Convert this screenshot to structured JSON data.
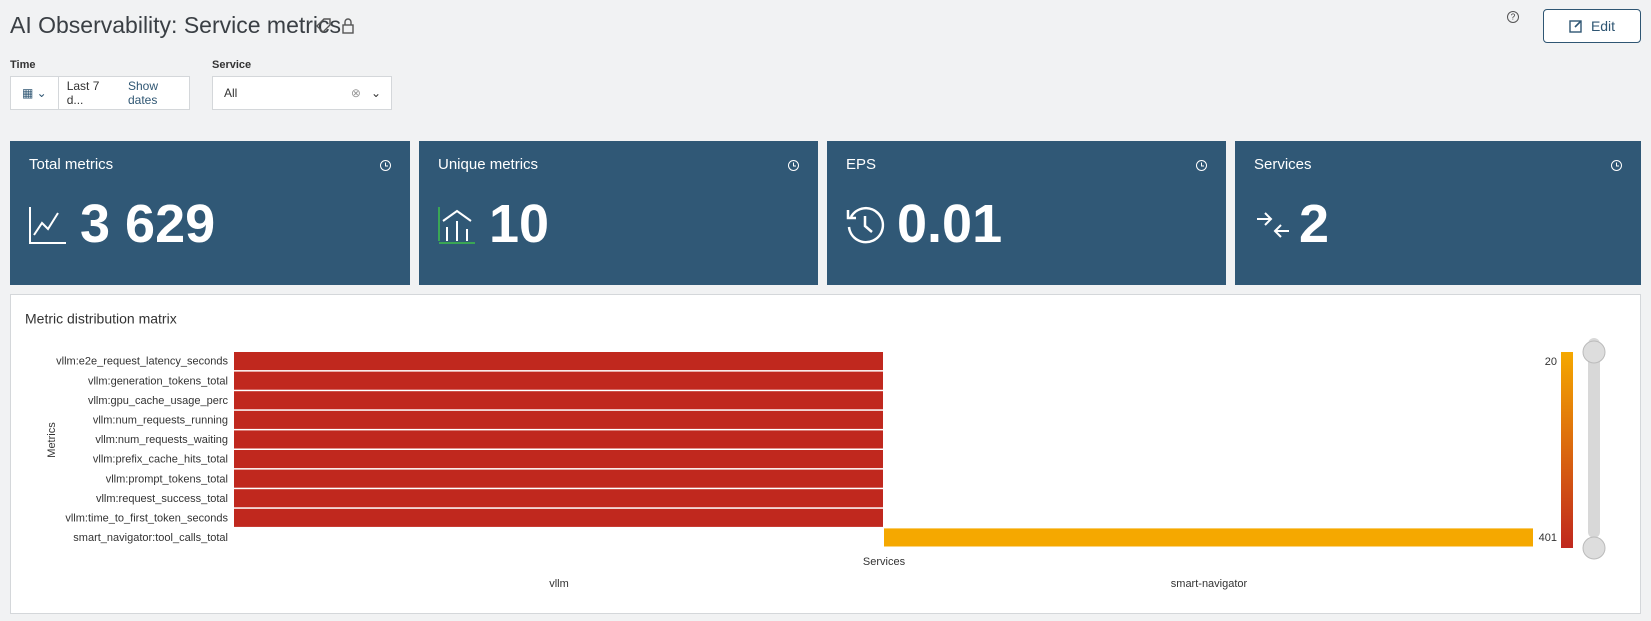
{
  "header": {
    "title": "AI Observability: Service metrics",
    "edit": "Edit"
  },
  "filters": {
    "time_label": "Time",
    "time_value": "Last 7 d...",
    "show_dates": "Show dates",
    "service_label": "Service",
    "service_value": "All"
  },
  "kpis": [
    {
      "title": "Total metrics",
      "value": "3 629"
    },
    {
      "title": "Unique metrics",
      "value": "10"
    },
    {
      "title": "EPS",
      "value": "0.01"
    },
    {
      "title": "Services",
      "value": "2"
    }
  ],
  "chart_data": {
    "type": "heatmap",
    "title": "Metric distribution matrix",
    "x_label": "Services",
    "y_label": "Metrics",
    "x": [
      "vllm",
      "smart-navigator"
    ],
    "y": [
      "vllm:e2e_request_latency_seconds",
      "vllm:generation_tokens_total",
      "vllm:gpu_cache_usage_perc",
      "vllm:num_requests_running",
      "vllm:num_requests_waiting",
      "vllm:prefix_cache_hits_total",
      "vllm:prompt_tokens_total",
      "vllm:request_success_total",
      "vllm:time_to_first_token_seconds",
      "smart_navigator:tool_calls_total"
    ],
    "values": [
      [
        401,
        null
      ],
      [
        401,
        null
      ],
      [
        401,
        null
      ],
      [
        401,
        null
      ],
      [
        401,
        null
      ],
      [
        401,
        null
      ],
      [
        401,
        null
      ],
      [
        401,
        null
      ],
      [
        401,
        null
      ],
      [
        null,
        20
      ]
    ],
    "clim": [
      20,
      401
    ],
    "cticks": [
      20,
      401
    ],
    "colors": [
      "#f5a800",
      "#c0281e"
    ]
  }
}
